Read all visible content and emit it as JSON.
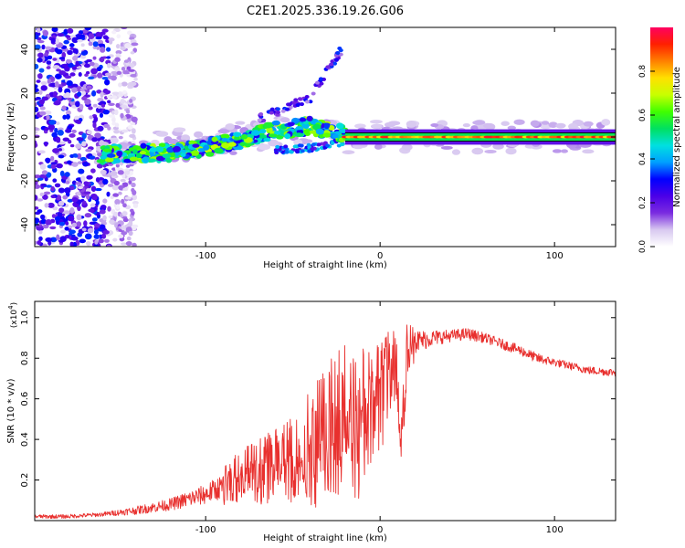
{
  "chart_data": [
    {
      "type": "heatmap",
      "title": "C2E1.2025.336.19.26.G06",
      "xlabel": "Height of straight line (km)",
      "ylabel": "Frequency (Hz)",
      "xlim": [
        -198,
        135
      ],
      "ylim": [
        -50,
        50
      ],
      "x_ticks": [
        -100,
        0,
        100
      ],
      "x_tick_labels": [
        "-100",
        "0",
        "100"
      ],
      "y_ticks": [
        -40,
        -20,
        0,
        20,
        40
      ],
      "y_tick_labels": [
        "-40",
        "-20",
        "0",
        "20",
        "40"
      ],
      "colorbar": {
        "label": "Normalized spectral amplitude",
        "range": [
          0,
          1
        ],
        "ticks": [
          0.0,
          0.2,
          0.4,
          0.6,
          0.8
        ],
        "tick_labels": [
          "0.0",
          "0.2",
          "0.4",
          "0.6",
          "0.8"
        ],
        "colors": [
          "#ffffff",
          "#d8c8f0",
          "#7a2be0",
          "#4b00e8",
          "#0000ff",
          "#00a0ff",
          "#00e0e0",
          "#00e060",
          "#40ff00",
          "#c8ff00",
          "#ffe000",
          "#ff8000",
          "#ff2000",
          "#ff0060"
        ]
      },
      "features": [
        {
          "name": "noise",
          "x_range": [
            -198,
            -140
          ],
          "y_range": [
            -50,
            50
          ],
          "level": 0.3
        },
        {
          "name": "signal-band",
          "x_range": [
            -160,
            -20
          ],
          "center_freq": [
            -8,
            5
          ],
          "level": 0.45
        },
        {
          "name": "upper-branch",
          "x": [
            -70,
            -40,
            -22
          ],
          "freq": [
            8,
            18,
            40
          ],
          "level": 0.25
        },
        {
          "name": "lower-branch",
          "x": [
            -60,
            -40,
            -20
          ],
          "freq": [
            -6,
            -5,
            -2
          ],
          "level": 0.3
        },
        {
          "name": "strong-line",
          "x_range": [
            -20,
            135
          ],
          "freq": 0,
          "level": 0.9
        }
      ]
    },
    {
      "type": "line",
      "xlabel": "Height of straight line (km)",
      "ylabel": "SNR (10 * v/v)",
      "y_scale_label": "(x10",
      "y_scale_exp": "4",
      "y_scale_close": ")",
      "xlim": [
        -198,
        135
      ],
      "ylim": [
        0,
        1.08
      ],
      "x_ticks": [
        -100,
        0,
        100
      ],
      "x_tick_labels": [
        "-100",
        "0",
        "100"
      ],
      "y_ticks": [
        0.2,
        0.4,
        0.6,
        0.8,
        1.0
      ],
      "y_tick_labels": [
        "0.2",
        "0.4",
        "0.6",
        "0.8",
        "1.0"
      ],
      "series": [
        {
          "name": "SNR",
          "color": "#e8302e",
          "x": [
            -198,
            -180,
            -160,
            -140,
            -120,
            -100,
            -90,
            -80,
            -70,
            -60,
            -50,
            -40,
            -30,
            -20,
            -15,
            -10,
            -5,
            0,
            5,
            10,
            12,
            15,
            20,
            30,
            40,
            50,
            60,
            70,
            80,
            90,
            100,
            110,
            120,
            135
          ],
          "values": [
            0.02,
            0.02,
            0.03,
            0.05,
            0.08,
            0.13,
            0.17,
            0.22,
            0.24,
            0.26,
            0.3,
            0.35,
            0.42,
            0.5,
            0.4,
            0.5,
            0.55,
            0.62,
            0.7,
            0.75,
            0.3,
            0.78,
            0.88,
            0.9,
            0.91,
            0.92,
            0.9,
            0.87,
            0.84,
            0.8,
            0.78,
            0.76,
            0.74,
            0.73
          ],
          "noise_amplitude": [
            0.01,
            0.01,
            0.01,
            0.02,
            0.03,
            0.05,
            0.06,
            0.08,
            0.1,
            0.12,
            0.14,
            0.18,
            0.22,
            0.25,
            0.25,
            0.22,
            0.2,
            0.18,
            0.15,
            0.12,
            0.1,
            0.12,
            0.06,
            0.04,
            0.03,
            0.03,
            0.025,
            0.025,
            0.025,
            0.025,
            0.02,
            0.02,
            0.02,
            0.02
          ]
        }
      ]
    }
  ]
}
